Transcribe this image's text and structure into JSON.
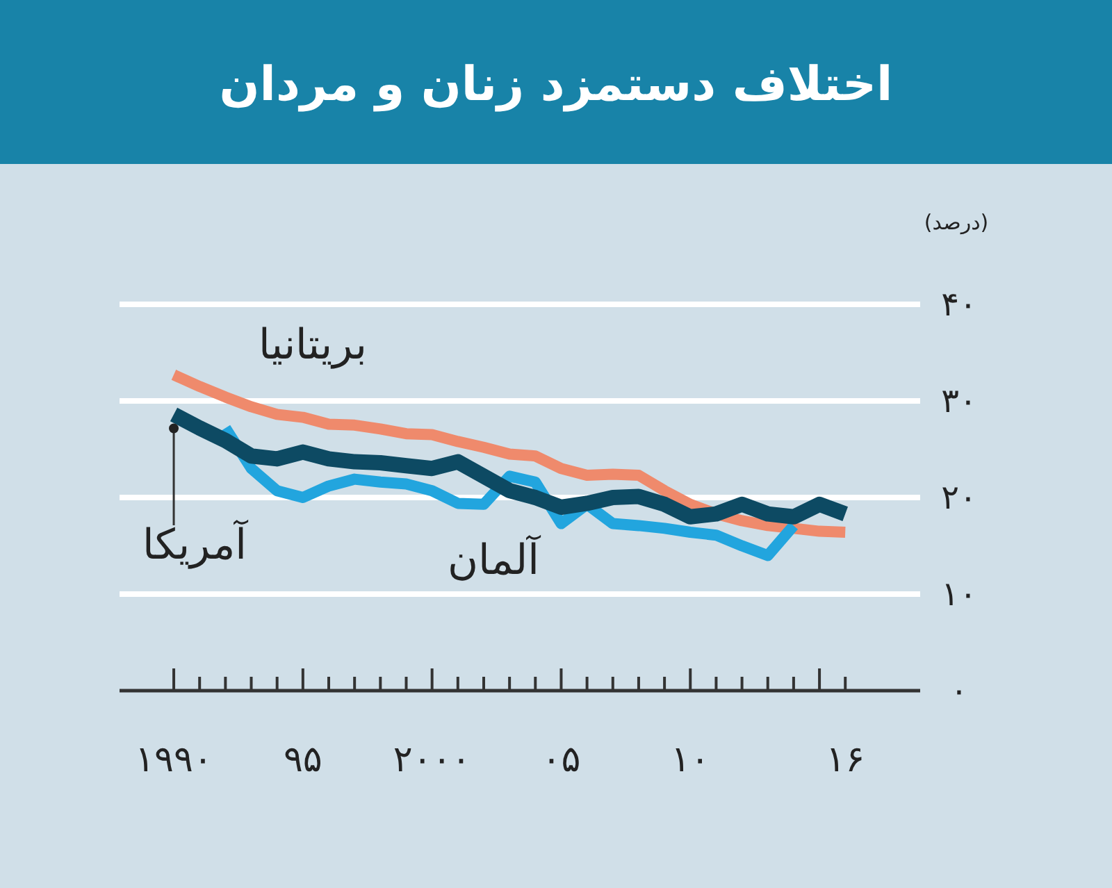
{
  "chart_data": {
    "type": "line",
    "title": "اختلاف دستمزد زنان و مردان",
    "ylabel": "(درصد)",
    "grid": "y",
    "marker": "none",
    "line_style": "solid",
    "xlim": [
      1987.9,
      2018.9
    ],
    "ylim": [
      0,
      40
    ],
    "xticks": [
      {
        "value": 1990,
        "label": "۱۹۹۰"
      },
      {
        "value": 1991,
        "label": null
      },
      {
        "value": 1992,
        "label": null
      },
      {
        "value": 1993,
        "label": null
      },
      {
        "value": 1994,
        "label": null
      },
      {
        "value": 1995,
        "label": "۹۵"
      },
      {
        "value": 1996,
        "label": null
      },
      {
        "value": 1997,
        "label": null
      },
      {
        "value": 1998,
        "label": null
      },
      {
        "value": 1999,
        "label": null
      },
      {
        "value": 2000,
        "label": "۲۰۰۰"
      },
      {
        "value": 2001,
        "label": null
      },
      {
        "value": 2002,
        "label": null
      },
      {
        "value": 2003,
        "label": null
      },
      {
        "value": 2004,
        "label": null
      },
      {
        "value": 2005,
        "label": "۰۵"
      },
      {
        "value": 2006,
        "label": null
      },
      {
        "value": 2007,
        "label": null
      },
      {
        "value": 2008,
        "label": null
      },
      {
        "value": 2009,
        "label": null
      },
      {
        "value": 2010,
        "label": "۱۰"
      },
      {
        "value": 2011,
        "label": null
      },
      {
        "value": 2012,
        "label": null
      },
      {
        "value": 2013,
        "label": null
      },
      {
        "value": 2014,
        "label": null
      },
      {
        "value": 2015,
        "label": null
      },
      {
        "value": 2016,
        "label": "۱۶"
      }
    ],
    "yticks": [
      {
        "value": 0,
        "label": "۰"
      },
      {
        "value": 10,
        "label": "۱۰"
      },
      {
        "value": 20,
        "label": "۲۰"
      },
      {
        "value": 30,
        "label": "۳۰"
      },
      {
        "value": 40,
        "label": "۴۰"
      }
    ],
    "series": [
      {
        "name": "بریتانیا",
        "color": "#ef8a6c",
        "x": [
          1990,
          1991,
          1992,
          1993,
          1994,
          1995,
          1996,
          1997,
          1998,
          1999,
          2000,
          2001,
          2002,
          2003,
          2004,
          2005,
          2006,
          2007,
          2008,
          2009,
          2010,
          2011,
          2012,
          2013,
          2014,
          2015,
          2016
        ],
        "values": [
          32.7,
          31.5,
          30.4,
          29.4,
          28.6,
          28.3,
          27.6,
          27.5,
          27.1,
          26.6,
          26.5,
          25.8,
          25.2,
          24.5,
          24.3,
          23.0,
          22.3,
          22.4,
          22.3,
          20.7,
          19.3,
          18.3,
          17.6,
          17.1,
          16.8,
          16.5,
          16.4
        ]
      },
      {
        "name": "آلمان",
        "color": "#22a5de",
        "x": [
          1992,
          1993,
          1994,
          1995,
          1996,
          1997,
          1998,
          1999,
          2000,
          2001,
          2002,
          2003,
          2004,
          2005,
          2006,
          2007,
          2008,
          2009,
          2010,
          2011,
          2012,
          2013,
          2014
        ],
        "values": [
          27.2,
          23.0,
          20.7,
          20.0,
          21.2,
          21.9,
          21.6,
          21.4,
          20.7,
          19.4,
          19.3,
          22.2,
          21.6,
          17.3,
          19.3,
          17.3,
          17.1,
          16.8,
          16.4,
          16.1,
          15.0,
          14.0,
          17.1
        ]
      },
      {
        "name": "آمریکا",
        "color": "#0d4a63",
        "x": [
          1990,
          1991,
          1992,
          1993,
          1994,
          1995,
          1996,
          1997,
          1998,
          1999,
          2000,
          2001,
          2002,
          2003,
          2004,
          2005,
          2006,
          2007,
          2008,
          2009,
          2010,
          2011,
          2012,
          2013,
          2014,
          2015,
          2016
        ],
        "values": [
          28.6,
          27.2,
          25.9,
          24.3,
          24.0,
          24.7,
          24.0,
          23.7,
          23.6,
          23.3,
          23.0,
          23.7,
          22.2,
          20.7,
          20.0,
          19.0,
          19.4,
          20.0,
          20.1,
          19.3,
          18.0,
          18.3,
          19.3,
          18.3,
          18.0,
          19.3,
          18.3
        ]
      }
    ]
  }
}
